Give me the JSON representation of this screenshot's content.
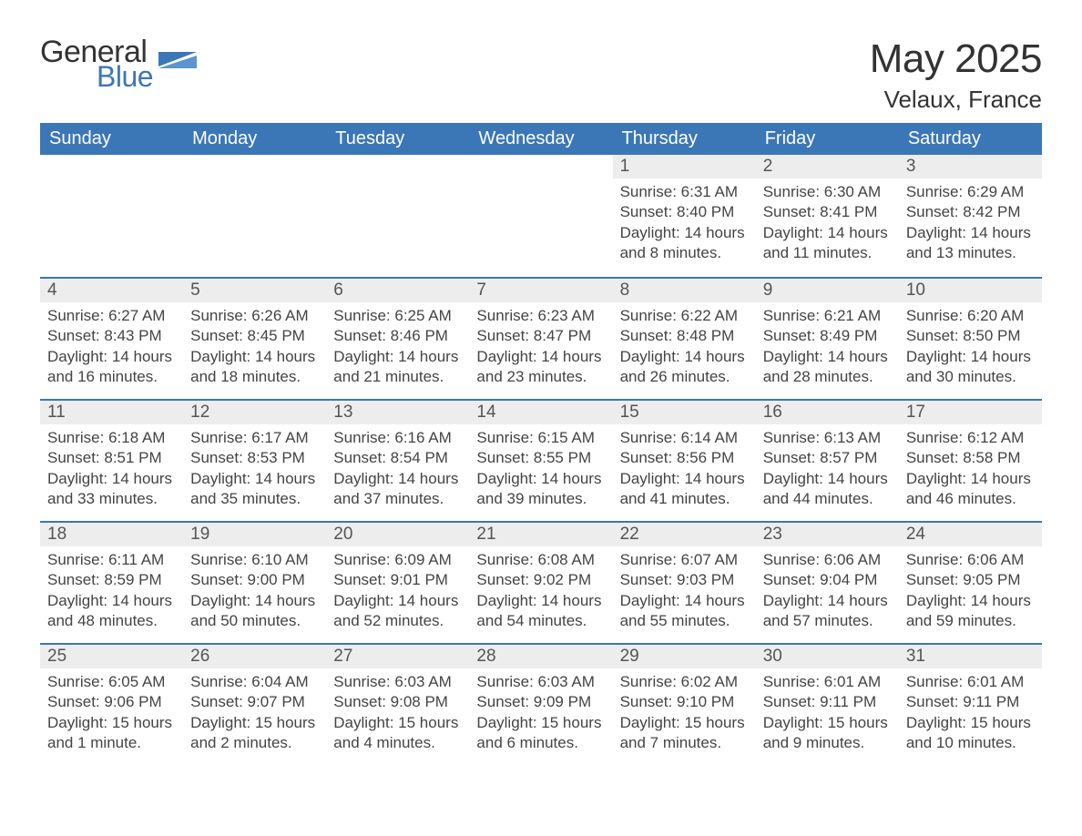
{
  "brand": {
    "general": "General",
    "blue": "Blue"
  },
  "title": "May 2025",
  "location": "Velaux, France",
  "colors": {
    "header_bg": "#3b77b7",
    "header_text": "#ffffff",
    "daynum_bg": "#ededed",
    "row_border": "#3b77b7",
    "body_text": "#444444",
    "title_text": "#333333",
    "logo_blue": "#3b77b7",
    "page_bg": "#ffffff"
  },
  "typography": {
    "title_fontsize": 44,
    "location_fontsize": 26,
    "weekday_fontsize": 20,
    "daynum_fontsize": 19,
    "body_fontsize": 17,
    "logo_fontsize": 34
  },
  "weekdays": [
    "Sunday",
    "Monday",
    "Tuesday",
    "Wednesday",
    "Thursday",
    "Friday",
    "Saturday"
  ],
  "weeks": [
    [
      null,
      null,
      null,
      null,
      {
        "n": "1",
        "sunrise": "6:31 AM",
        "sunset": "8:40 PM",
        "daylight": "14 hours and 8 minutes."
      },
      {
        "n": "2",
        "sunrise": "6:30 AM",
        "sunset": "8:41 PM",
        "daylight": "14 hours and 11 minutes."
      },
      {
        "n": "3",
        "sunrise": "6:29 AM",
        "sunset": "8:42 PM",
        "daylight": "14 hours and 13 minutes."
      }
    ],
    [
      {
        "n": "4",
        "sunrise": "6:27 AM",
        "sunset": "8:43 PM",
        "daylight": "14 hours and 16 minutes."
      },
      {
        "n": "5",
        "sunrise": "6:26 AM",
        "sunset": "8:45 PM",
        "daylight": "14 hours and 18 minutes."
      },
      {
        "n": "6",
        "sunrise": "6:25 AM",
        "sunset": "8:46 PM",
        "daylight": "14 hours and 21 minutes."
      },
      {
        "n": "7",
        "sunrise": "6:23 AM",
        "sunset": "8:47 PM",
        "daylight": "14 hours and 23 minutes."
      },
      {
        "n": "8",
        "sunrise": "6:22 AM",
        "sunset": "8:48 PM",
        "daylight": "14 hours and 26 minutes."
      },
      {
        "n": "9",
        "sunrise": "6:21 AM",
        "sunset": "8:49 PM",
        "daylight": "14 hours and 28 minutes."
      },
      {
        "n": "10",
        "sunrise": "6:20 AM",
        "sunset": "8:50 PM",
        "daylight": "14 hours and 30 minutes."
      }
    ],
    [
      {
        "n": "11",
        "sunrise": "6:18 AM",
        "sunset": "8:51 PM",
        "daylight": "14 hours and 33 minutes."
      },
      {
        "n": "12",
        "sunrise": "6:17 AM",
        "sunset": "8:53 PM",
        "daylight": "14 hours and 35 minutes."
      },
      {
        "n": "13",
        "sunrise": "6:16 AM",
        "sunset": "8:54 PM",
        "daylight": "14 hours and 37 minutes."
      },
      {
        "n": "14",
        "sunrise": "6:15 AM",
        "sunset": "8:55 PM",
        "daylight": "14 hours and 39 minutes."
      },
      {
        "n": "15",
        "sunrise": "6:14 AM",
        "sunset": "8:56 PM",
        "daylight": "14 hours and 41 minutes."
      },
      {
        "n": "16",
        "sunrise": "6:13 AM",
        "sunset": "8:57 PM",
        "daylight": "14 hours and 44 minutes."
      },
      {
        "n": "17",
        "sunrise": "6:12 AM",
        "sunset": "8:58 PM",
        "daylight": "14 hours and 46 minutes."
      }
    ],
    [
      {
        "n": "18",
        "sunrise": "6:11 AM",
        "sunset": "8:59 PM",
        "daylight": "14 hours and 48 minutes."
      },
      {
        "n": "19",
        "sunrise": "6:10 AM",
        "sunset": "9:00 PM",
        "daylight": "14 hours and 50 minutes."
      },
      {
        "n": "20",
        "sunrise": "6:09 AM",
        "sunset": "9:01 PM",
        "daylight": "14 hours and 52 minutes."
      },
      {
        "n": "21",
        "sunrise": "6:08 AM",
        "sunset": "9:02 PM",
        "daylight": "14 hours and 54 minutes."
      },
      {
        "n": "22",
        "sunrise": "6:07 AM",
        "sunset": "9:03 PM",
        "daylight": "14 hours and 55 minutes."
      },
      {
        "n": "23",
        "sunrise": "6:06 AM",
        "sunset": "9:04 PM",
        "daylight": "14 hours and 57 minutes."
      },
      {
        "n": "24",
        "sunrise": "6:06 AM",
        "sunset": "9:05 PM",
        "daylight": "14 hours and 59 minutes."
      }
    ],
    [
      {
        "n": "25",
        "sunrise": "6:05 AM",
        "sunset": "9:06 PM",
        "daylight": "15 hours and 1 minute."
      },
      {
        "n": "26",
        "sunrise": "6:04 AM",
        "sunset": "9:07 PM",
        "daylight": "15 hours and 2 minutes."
      },
      {
        "n": "27",
        "sunrise": "6:03 AM",
        "sunset": "9:08 PM",
        "daylight": "15 hours and 4 minutes."
      },
      {
        "n": "28",
        "sunrise": "6:03 AM",
        "sunset": "9:09 PM",
        "daylight": "15 hours and 6 minutes."
      },
      {
        "n": "29",
        "sunrise": "6:02 AM",
        "sunset": "9:10 PM",
        "daylight": "15 hours and 7 minutes."
      },
      {
        "n": "30",
        "sunrise": "6:01 AM",
        "sunset": "9:11 PM",
        "daylight": "15 hours and 9 minutes."
      },
      {
        "n": "31",
        "sunrise": "6:01 AM",
        "sunset": "9:11 PM",
        "daylight": "15 hours and 10 minutes."
      }
    ]
  ],
  "labels": {
    "sunrise": "Sunrise: ",
    "sunset": "Sunset: ",
    "daylight": "Daylight: "
  }
}
